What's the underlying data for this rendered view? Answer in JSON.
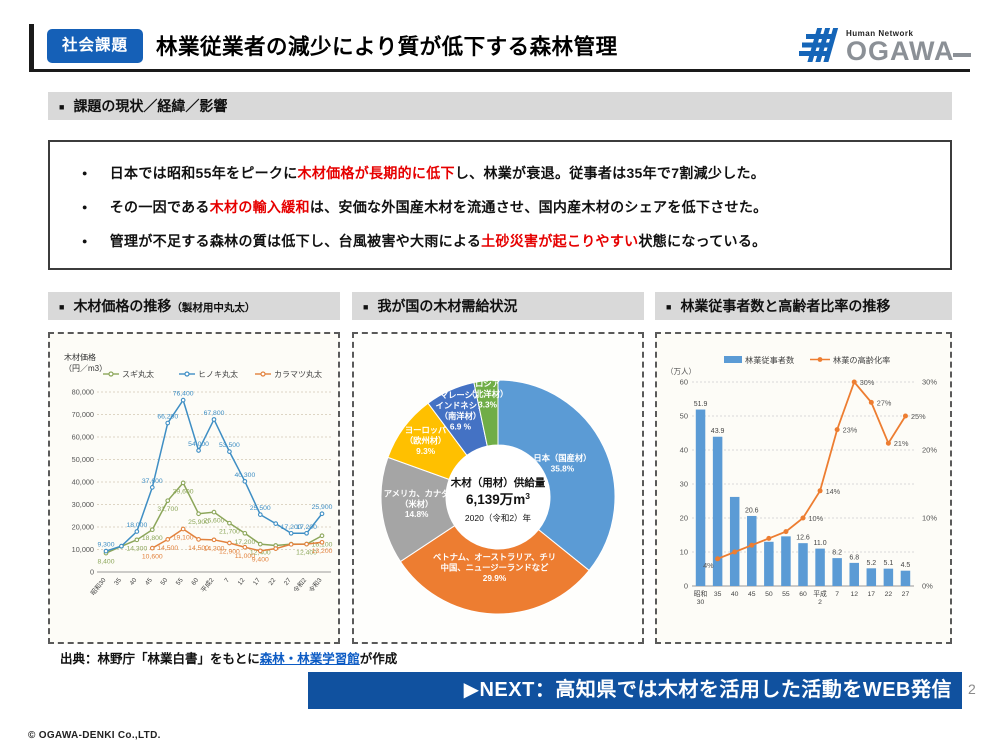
{
  "header": {
    "badge": "社会課題",
    "title": "林業従業者の減少により質が低下する森林管理",
    "logo_tagline": "Human Network",
    "logo_name": "OGAWA"
  },
  "glyphs": {
    "section_marker": "■",
    "list_marker": "●"
  },
  "issues": {
    "title": "課題の現状／経緯／影響",
    "bullets": [
      {
        "segments": [
          {
            "text": "日本では昭和55年をピークに",
            "red": false
          },
          {
            "text": "木材価格が長期的に低下",
            "red": true
          },
          {
            "text": "し、林業が衰退。従事者は35年で7割減少した。",
            "red": false
          }
        ]
      },
      {
        "segments": [
          {
            "text": "その一因である",
            "red": false
          },
          {
            "text": "木材の輸入緩和",
            "red": true
          },
          {
            "text": "は、安価な外国産木材を流通させ、国内産木材のシェアを低下させた。",
            "red": false
          }
        ]
      },
      {
        "segments": [
          {
            "text": "管理が不足する森林の質は低下し、台風被害や大雨による",
            "red": false
          },
          {
            "text": "土砂災害が起こりやすい",
            "red": true
          },
          {
            "text": "状態になっている。",
            "red": false
          }
        ]
      }
    ]
  },
  "panel_heads": [
    {
      "title": "木材価格の推移",
      "suffix": "（製材用中丸太）"
    },
    {
      "title": "我が国の木材需給状況",
      "suffix": ""
    },
    {
      "title": "林業従事者数と高齢者比率の推移",
      "suffix": ""
    }
  ],
  "source": {
    "prefix": "出典：林野庁「林業白書」をもとに",
    "link_text": "森林・林業学習館",
    "suffix": "が作成"
  },
  "footer": {
    "next_label": "▶NEXT：高知県では木材を活用した活動をWEB発信",
    "page": "2",
    "copyright": "© OGAWA-DENKI Co.,LTD."
  },
  "colors": {
    "badge_blue": "#1560b7",
    "footer_blue": "#10519f",
    "link_blue": "#0c5bc4",
    "red_accent": "#e60000",
    "section_gray": "#d9d9d9"
  },
  "chart_data": [
    {
      "type": "line",
      "title": "木材価格の推移（製材用中丸太）",
      "axis_title_lines": [
        "木材価格",
        "（円／m3）"
      ],
      "ylim": [
        0,
        80000
      ],
      "ytick": 10000,
      "categories": [
        "昭和30",
        "35",
        "40",
        "45",
        "50",
        "55",
        "60",
        "平成2",
        "7",
        "12",
        "17",
        "22",
        "27",
        "令和2",
        "令和3"
      ],
      "series": [
        {
          "name": "スギ丸太",
          "color": "#8ca65a",
          "label_side": "below",
          "values": [
            8400,
            11400,
            14300,
            18800,
            31700,
            39600,
            25900,
            26600,
            21700,
            17200,
            12400,
            11800,
            12400,
            12400,
            16100
          ],
          "labels": [
            "8,400",
            null,
            "14,300",
            "18,800",
            "31,700",
            "39,600",
            "25,900",
            "26,600",
            "21,700",
            "17,200",
            "12,400",
            null,
            null,
            "12,400",
            "16,100"
          ]
        },
        {
          "name": "ヒノキ丸太",
          "color": "#3e8ec4",
          "label_side": "above",
          "values": [
            9300,
            11500,
            18000,
            37600,
            66200,
            76400,
            54000,
            67800,
            53500,
            40300,
            25500,
            21500,
            17200,
            17200,
            25900
          ],
          "labels": [
            "9,300",
            null,
            "18,000",
            "37,600",
            "66,200",
            "76,400",
            "54,000",
            "67,800",
            "53,500",
            "40,300",
            "25,500",
            null,
            "17,200",
            "17,200",
            "25,900"
          ]
        },
        {
          "name": "カラマツ丸太",
          "color": "#e2813c",
          "label_side": "below",
          "values": [
            null,
            null,
            null,
            10600,
            14500,
            19100,
            14500,
            14300,
            12900,
            11000,
            9400,
            10400,
            12300,
            12400,
            13200
          ],
          "labels": [
            null,
            null,
            null,
            "10,600",
            "14,500",
            "19,100",
            "14,500",
            "14,300",
            "12,900",
            "11,000",
            "9,400",
            null,
            null,
            null,
            "13,200"
          ]
        }
      ]
    },
    {
      "type": "pie",
      "title": "我が国の木材需給状況",
      "center_title": "木材（用材）供給量",
      "center_value": "6,139万m",
      "center_value_sup": "3",
      "center_sub": "2020（令和2）年",
      "slices": [
        {
          "label_lines": [
            "日本（国産材）"
          ],
          "pct": 35.8,
          "pct_label": "35.8%",
          "color": "#5b9bd5"
        },
        {
          "label_lines": [
            "ベトナム、オーストラリア、チリ",
            "中国、ニュージーランドなど"
          ],
          "pct": 29.9,
          "pct_label": "29.9%",
          "color": "#ed7d31"
        },
        {
          "label_lines": [
            "アメリカ、カナダ",
            "（米材）"
          ],
          "pct": 14.8,
          "pct_label": "14.8%",
          "color": "#a5a5a5"
        },
        {
          "label_lines": [
            "ヨーロッパ",
            "（欧州材）"
          ],
          "pct": 9.3,
          "pct_label": "9.3%",
          "color": "#ffc000"
        },
        {
          "label_lines": [
            "マレーシア",
            "インドネシア",
            "（南洋材）"
          ],
          "pct": 6.9,
          "pct_label": "6.9 %",
          "color": "#4472c4"
        },
        {
          "label_lines": [
            "ロシア",
            "（北洋材）"
          ],
          "pct": 3.3,
          "pct_label": "3.3%",
          "color": "#70ad47"
        }
      ]
    },
    {
      "type": "bar+line",
      "title": "林業従事者数と高齢者比率の推移",
      "unit_left": "（万人）",
      "ylim_left": [
        0,
        60
      ],
      "ylim_right": [
        0,
        30
      ],
      "categories": [
        [
          "昭和",
          "30"
        ],
        [
          "35"
        ],
        [
          "40"
        ],
        [
          "45"
        ],
        [
          "50"
        ],
        [
          "55"
        ],
        [
          "60"
        ],
        [
          "平成",
          "2"
        ],
        [
          "7"
        ],
        [
          "12"
        ],
        [
          "17"
        ],
        [
          "22"
        ],
        [
          "27"
        ]
      ],
      "bar_series": {
        "name": "林業従事者数",
        "color": "#5b9bd5",
        "values": [
          51.9,
          43.9,
          26.2,
          20.6,
          13.0,
          14.6,
          12.6,
          11.0,
          8.2,
          6.8,
          5.2,
          5.1,
          4.5
        ],
        "labels": [
          "51.9",
          "43.9",
          null,
          "20.6",
          null,
          null,
          "12.6",
          "11.0",
          "8.2",
          "6.8",
          "5.2",
          "5.1",
          "4.5"
        ]
      },
      "line_series": {
        "name": "林業の高齢化率",
        "color": "#ed7d31",
        "values": [
          null,
          4,
          5,
          6,
          7,
          8,
          10,
          14,
          23,
          30,
          27,
          21,
          25
        ],
        "labels": [
          null,
          "4%",
          null,
          null,
          null,
          null,
          "10%",
          "14%",
          "23%",
          "30%",
          "27%",
          "21%",
          "25%"
        ]
      },
      "right_tick_labels": [
        "0%",
        "10%",
        "20%",
        "30%"
      ]
    }
  ]
}
